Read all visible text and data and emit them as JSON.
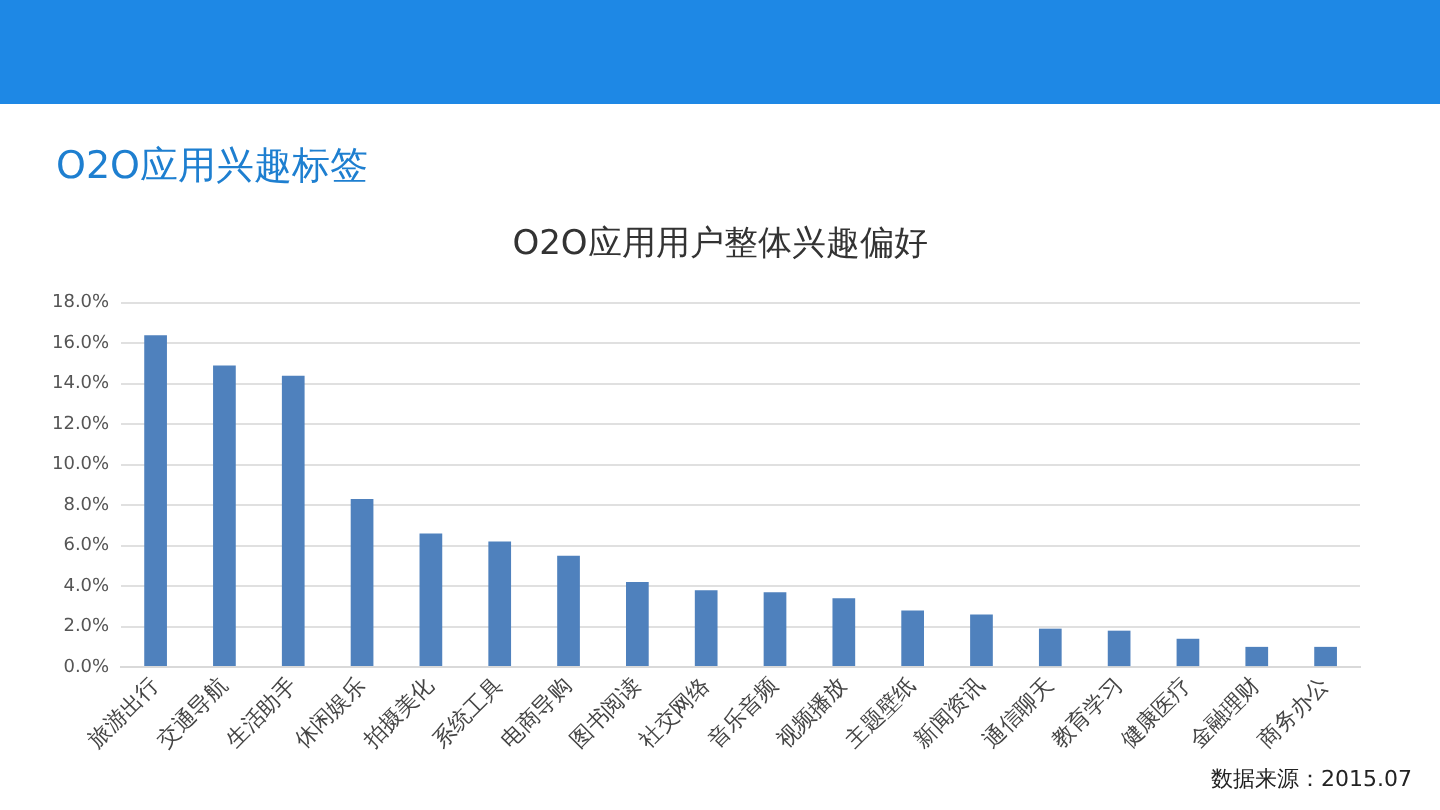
{
  "chart_data": {
    "type": "bar",
    "title": "O2O应用兴趣标签",
    "subtitle": "O2O应用用户整体兴趣偏好",
    "categories": [
      "旅游出行",
      "交通导航",
      "生活助手",
      "休闲娱乐",
      "拍摄美化",
      "系统工具",
      "电商导购",
      "图书阅读",
      "社交网络",
      "音乐音频",
      "视频播放",
      "主题壁纸",
      "新闻资讯",
      "通信聊天",
      "教育学习",
      "健康医疗",
      "金融理财",
      "商务办公"
    ],
    "values": [
      16.4,
      14.9,
      14.4,
      8.3,
      6.6,
      6.2,
      5.5,
      4.2,
      3.8,
      3.7,
      3.4,
      2.8,
      2.6,
      1.9,
      1.8,
      1.4,
      1.0,
      1.0
    ],
    "color": "#4f81bd",
    "ylim": [
      0,
      18
    ],
    "yticks": [
      {
        "value": 0,
        "label": "0.0%"
      },
      {
        "value": 2,
        "label": "2.0%"
      },
      {
        "value": 4,
        "label": "4.0%"
      },
      {
        "value": 6,
        "label": "6.0%"
      },
      {
        "value": 8,
        "label": "8.0%"
      },
      {
        "value": 10,
        "label": "10.0%"
      },
      {
        "value": 12,
        "label": "12.0%"
      },
      {
        "value": 14,
        "label": "14.0%"
      },
      {
        "value": 16,
        "label": "16.0%"
      },
      {
        "value": 18,
        "label": "18.0%"
      }
    ],
    "grid": "y",
    "annotations": [
      "数据来源：2015.07"
    ]
  }
}
